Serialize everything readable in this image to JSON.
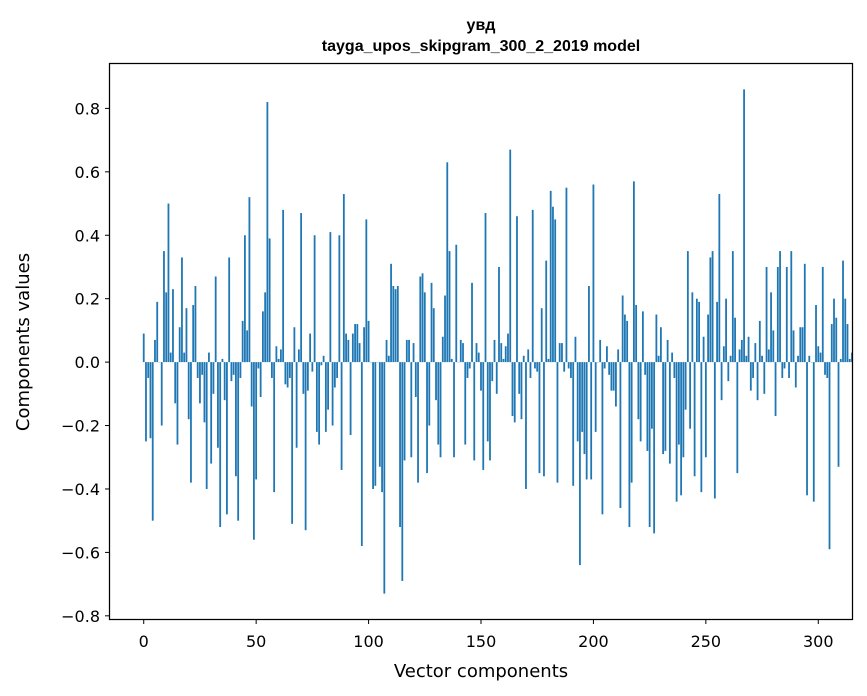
{
  "chart_data": {
    "type": "bar",
    "title": "увд",
    "subtitle": "tayga_upos_skipgram_300_2_2019 model",
    "xlabel": "Vector components",
    "ylabel": "Components values",
    "xlim": [
      -15,
      315
    ],
    "ylim": [
      -0.81,
      0.94
    ],
    "xticks": [
      0,
      50,
      100,
      150,
      200,
      250,
      300
    ],
    "yticks": [
      -0.8,
      -0.6,
      -0.4,
      -0.2,
      0.0,
      0.2,
      0.4,
      0.6,
      0.8
    ],
    "ytick_labels": [
      "−0.8",
      "−0.6",
      "−0.4",
      "−0.2",
      "0.0",
      "0.2",
      "0.4",
      "0.6",
      "0.8"
    ],
    "grid": false,
    "bar_color": "#1f77b4",
    "x_start": 0,
    "values": [
      0.09,
      -0.25,
      -0.05,
      -0.24,
      -0.5,
      0.07,
      0.19,
      0.0,
      -0.2,
      0.35,
      0.22,
      0.5,
      0.03,
      0.23,
      -0.13,
      -0.26,
      0.11,
      0.33,
      0.03,
      0.17,
      -0.18,
      -0.38,
      0.18,
      0.24,
      -0.05,
      -0.13,
      -0.04,
      -0.19,
      -0.4,
      0.03,
      -0.32,
      -0.1,
      0.27,
      -0.27,
      -0.52,
      0.01,
      -0.12,
      -0.48,
      0.33,
      -0.06,
      -0.04,
      -0.36,
      -0.5,
      -0.05,
      0.13,
      0.4,
      0.1,
      0.52,
      -0.14,
      -0.56,
      -0.37,
      -0.02,
      -0.11,
      0.16,
      0.22,
      0.82,
      0.39,
      -0.05,
      -0.41,
      0.05,
      0.01,
      0.04,
      0.48,
      -0.07,
      -0.08,
      -0.05,
      -0.51,
      0.11,
      -0.27,
      0.04,
      0.47,
      -0.1,
      -0.53,
      -0.09,
      0.09,
      -0.03,
      0.4,
      -0.22,
      -0.26,
      -0.01,
      0.02,
      -0.22,
      -0.15,
      0.41,
      -0.2,
      -0.08,
      -0.05,
      0.4,
      -0.34,
      0.53,
      0.09,
      0.07,
      -0.23,
      0.09,
      0.12,
      0.12,
      0.06,
      -0.58,
      0.11,
      0.45,
      0.13,
      0.0,
      -0.4,
      -0.39,
      0.0,
      -0.33,
      -0.41,
      -0.73,
      0.07,
      0.02,
      0.31,
      0.24,
      0.23,
      0.24,
      -0.52,
      -0.69,
      -0.31,
      0.07,
      0.07,
      -0.3,
      0.06,
      -0.11,
      -0.38,
      0.27,
      0.28,
      0.22,
      -0.35,
      -0.2,
      0.25,
      0.17,
      -0.12,
      -0.26,
      -0.3,
      0.08,
      0.21,
      0.63,
      0.35,
      0.01,
      -0.3,
      0.37,
      0.0,
      0.07,
      0.06,
      -0.26,
      -0.05,
      -0.02,
      0.25,
      -0.31,
      0.06,
      0.03,
      -0.09,
      -0.34,
      0.47,
      -0.25,
      -0.31,
      -0.06,
      0.07,
      -0.1,
      0.3,
      0.06,
      0.01,
      0.05,
      0.09,
      0.67,
      -0.17,
      -0.19,
      0.46,
      -0.1,
      -0.18,
      0.02,
      -0.4,
      0.04,
      -0.05,
      0.48,
      -0.02,
      -0.03,
      -0.35,
      0.17,
      -0.36,
      0.32,
      0.01,
      0.54,
      0.49,
      0.45,
      -0.38,
      0.06,
      0.06,
      -0.03,
      0.55,
      -0.02,
      -0.05,
      -0.39,
      0.08,
      -0.25,
      -0.64,
      -0.22,
      -0.29,
      -0.37,
      0.24,
      -0.37,
      0.56,
      -0.22,
      0.0,
      0.07,
      -0.48,
      -0.02,
      0.05,
      -0.04,
      -0.09,
      -0.09,
      -0.14,
      0.04,
      -0.46,
      0.21,
      0.15,
      0.13,
      -0.52,
      -0.38,
      0.57,
      0.18,
      -0.18,
      -0.25,
      0.16,
      -0.04,
      -0.28,
      -0.52,
      -0.21,
      -0.54,
      0.15,
      0.02,
      0.11,
      -0.29,
      -0.28,
      0.07,
      -0.32,
      0.03,
      -0.05,
      -0.44,
      -0.26,
      -0.42,
      -0.3,
      -0.15,
      0.35,
      -0.21,
      0.22,
      -0.36,
      0.2,
      0.19,
      -0.41,
      0.08,
      -0.3,
      0.15,
      0.33,
      0.35,
      -0.43,
      0.19,
      0.53,
      -0.12,
      0.05,
      0.2,
      -0.06,
      0.02,
      0.35,
      0.14,
      -0.35,
      0.04,
      0.07,
      0.86,
      0.02,
      0.08,
      -0.09,
      -0.05,
      0.06,
      -0.12,
      0.13,
      0.02,
      -0.1,
      0.3,
      0.04,
      0.22,
      0.1,
      -0.17,
      0.3,
      0.35,
      -0.05,
      -0.02,
      0.3,
      -0.05,
      0.35,
      0.1,
      -0.08,
      0.02,
      0.11,
      0.11,
      0.31,
      -0.42,
      0.02,
      0.0,
      -0.44,
      0.18,
      0.05,
      0.03,
      0.3,
      -0.04,
      -0.05,
      -0.59,
      0.12,
      0.2,
      0.14,
      -0.33,
      0.01,
      0.32,
      0.2,
      0.12,
      0.01,
      0.03
    ]
  }
}
